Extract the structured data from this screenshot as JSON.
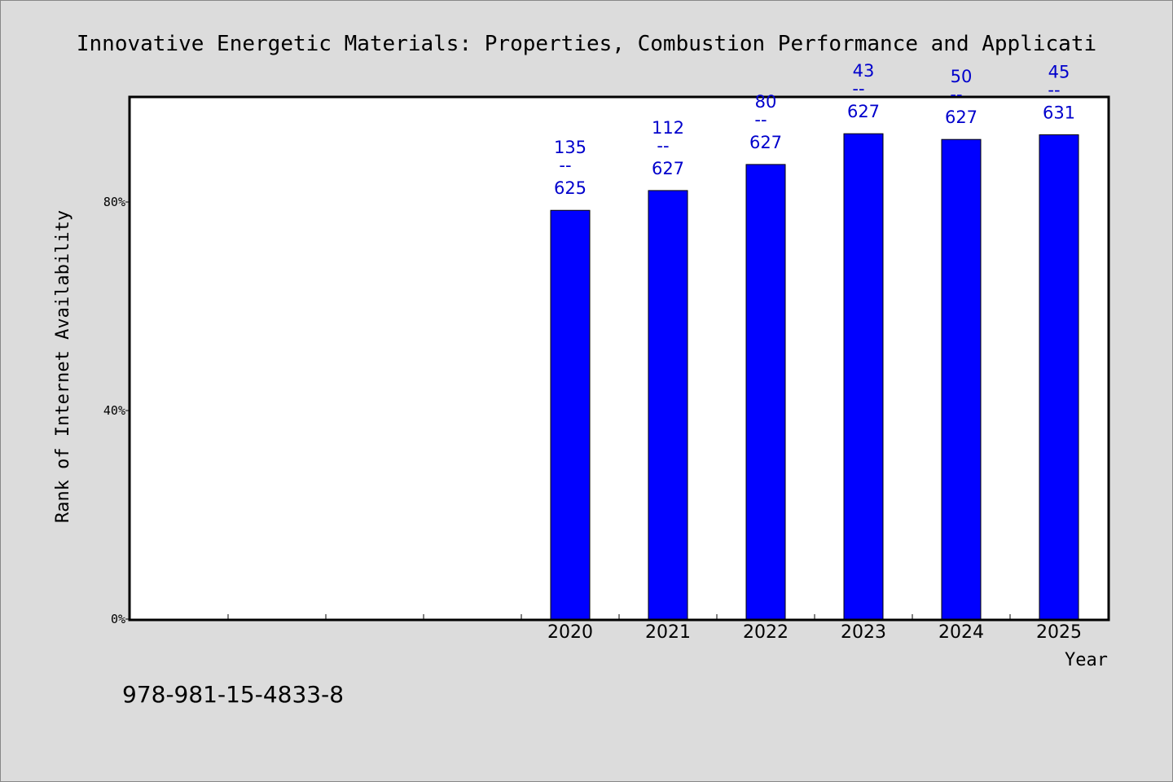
{
  "chart_data": {
    "type": "bar",
    "title": "Innovative Energetic Materials: Properties, Combustion Performance and Applicati",
    "xlabel": "Year",
    "ylabel": "Rank of Internet Availability",
    "categories": [
      "",
      "",
      "",
      "",
      "2020",
      "2021",
      "2022",
      "2023",
      "2024",
      "2025"
    ],
    "values": [
      null,
      null,
      null,
      null,
      0.784,
      0.822,
      0.872,
      0.931,
      0.92,
      0.929
    ],
    "data_labels": [
      {
        "rank": "135",
        "separator": "--",
        "total": "625"
      },
      {
        "rank": "112",
        "separator": "--",
        "total": "627"
      },
      {
        "rank": "80",
        "separator": "--",
        "total": "627"
      },
      {
        "rank": "43",
        "separator": "--",
        "total": "627"
      },
      {
        "rank": "50",
        "separator": "--",
        "total": "627"
      },
      {
        "rank": "45",
        "separator": "--",
        "total": "631"
      }
    ],
    "y_ticks": [
      {
        "value": 0,
        "label": "0%"
      },
      {
        "value": 0.4,
        "label": "40%"
      },
      {
        "value": 0.8,
        "label": "80%"
      }
    ],
    "ylim": [
      0,
      1.0
    ],
    "grid": false,
    "bar_color": "#0000ff",
    "label_color": "#0000cc"
  },
  "footer": {
    "isbn": "978-981-15-4833-8"
  }
}
